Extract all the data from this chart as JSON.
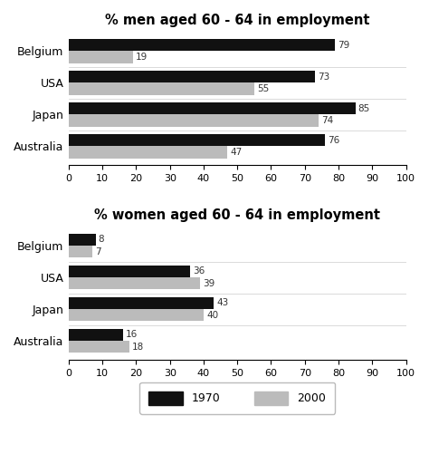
{
  "men_title": "% men aged 60 - 64 in employment",
  "women_title": "% women aged 60 - 64 in employment",
  "categories": [
    "Australia",
    "Japan",
    "USA",
    "Belgium"
  ],
  "men_1970": [
    76,
    85,
    73,
    79
  ],
  "men_2000": [
    47,
    74,
    55,
    19
  ],
  "women_1970": [
    16,
    43,
    36,
    8
  ],
  "women_2000": [
    18,
    40,
    39,
    7
  ],
  "color_1970": "#111111",
  "color_2000": "#bbbbbb",
  "xlim": [
    0,
    100
  ],
  "xticks": [
    0,
    10,
    20,
    30,
    40,
    50,
    60,
    70,
    80,
    90,
    100
  ],
  "bar_height": 0.38,
  "label_1970": "1970",
  "label_2000": "2000",
  "bg_color": "#ffffff",
  "title_fontsize": 10.5,
  "tick_fontsize": 8,
  "label_fontsize": 9,
  "annot_fontsize": 7.5
}
